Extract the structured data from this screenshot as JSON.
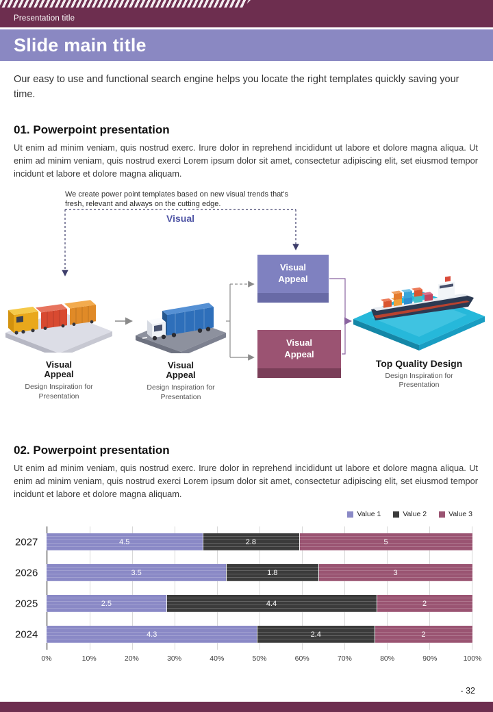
{
  "colors": {
    "maroon_bar": "#6d2e4f",
    "title_band": "#8a88c2",
    "accent_purple": "#4f55a5",
    "box_purple": "#7f81c0",
    "box_maroon": "#9b5372"
  },
  "top_bar": {
    "title": "Presentation title"
  },
  "header": {
    "title": "Slide main title"
  },
  "intro": "Our easy to use and functional search engine helps you locate the right templates quickly saving your time.",
  "sections": [
    {
      "heading": "01. Powerpoint presentation",
      "body": "Ut enim ad minim veniam, quis nostrud exerc. Irure dolor in reprehend incididunt ut labore et dolore magna aliqua. Ut enim ad minim veniam, quis nostrud exerci Lorem ipsum dolor sit amet, consectetur adipiscing elit, set eiusmod tempor incidunt et labore et dolore magna aliquam."
    },
    {
      "heading": "02. Powerpoint presentation",
      "body": "Ut enim ad minim veniam, quis nostrud exerc. Irure dolor in reprehend incididunt ut labore et dolore magna aliqua. Ut enim ad minim veniam, quis nostrud exerci Lorem ipsum dolor sit amet, consectetur adipiscing elit, set eiusmod tempor incidunt et labore et dolore magna aliquam."
    }
  ],
  "diagram": {
    "note": "We create power point templates based on new visual trends that's fresh, relevant and always on the cutting edge.",
    "visual_label": "Visual",
    "boxes": [
      {
        "label": "Visual Appeal"
      },
      {
        "label": "Visual Appeal"
      }
    ],
    "figures": [
      {
        "title": "Visual Appeal",
        "subtitle": "Design Inspiration for Presentation"
      },
      {
        "title": "Visual Appeal",
        "subtitle": "Design Inspiration for Presentation"
      },
      {
        "title": "Top Quality Design",
        "subtitle": "Design Inspiration for Presentation"
      }
    ]
  },
  "chart_data": {
    "type": "bar",
    "orientation": "horizontal",
    "stacked": true,
    "normalized_to_100": true,
    "categories": [
      "2027",
      "2026",
      "2025",
      "2024"
    ],
    "series": [
      {
        "name": "Value 1",
        "color": "#8a89c6",
        "values": [
          4.5,
          3.5,
          2.5,
          4.3
        ]
      },
      {
        "name": "Value 2",
        "color": "#3b3b3b",
        "values": [
          2.8,
          1.8,
          4.4,
          2.4
        ]
      },
      {
        "name": "Value 3",
        "color": "#9a5472",
        "values": [
          5,
          3,
          2,
          2
        ]
      }
    ],
    "x_ticks": [
      "0%",
      "10%",
      "20%",
      "30%",
      "40%",
      "50%",
      "60%",
      "70%",
      "80%",
      "90%",
      "100%"
    ],
    "xlabel": "",
    "ylabel": "",
    "legend_position": "top-right",
    "grid": true
  },
  "footer": {
    "page_number": "- 32"
  }
}
